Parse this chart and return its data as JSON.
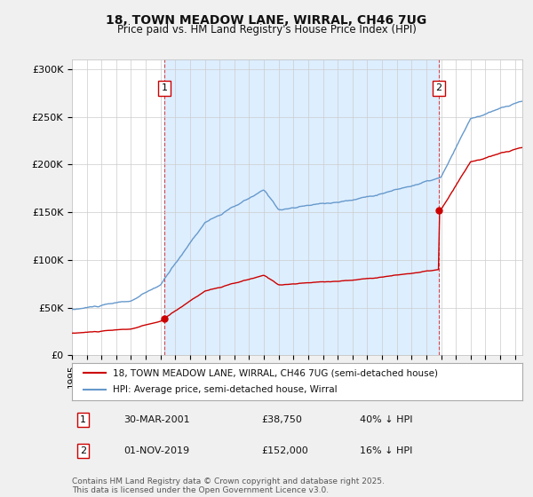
{
  "title": "18, TOWN MEADOW LANE, WIRRAL, CH46 7UG",
  "subtitle": "Price paid vs. HM Land Registry's House Price Index (HPI)",
  "ylabel_ticks": [
    "£0",
    "£50K",
    "£100K",
    "£150K",
    "£200K",
    "£250K",
    "£300K"
  ],
  "ytick_vals": [
    0,
    50000,
    100000,
    150000,
    200000,
    250000,
    300000
  ],
  "ylim": [
    0,
    310000
  ],
  "xlim_start": 1995.0,
  "xlim_end": 2025.5,
  "sale1_x": 2001.25,
  "sale1_y": 38750,
  "sale2_x": 2019.83,
  "sale2_y": 152000,
  "sale1_label": "30-MAR-2001",
  "sale1_price": "£38,750",
  "sale1_hpi": "40% ↓ HPI",
  "sale2_label": "01-NOV-2019",
  "sale2_price": "£152,000",
  "sale2_hpi": "16% ↓ HPI",
  "line1_color": "#cc0000",
  "line2_color": "#6699cc",
  "vline_color": "#cc0000",
  "shade_color": "#ddeeff",
  "bg_color": "#f0f0f0",
  "plot_bg": "#ffffff",
  "legend_line1": "18, TOWN MEADOW LANE, WIRRAL, CH46 7UG (semi-detached house)",
  "legend_line2": "HPI: Average price, semi-detached house, Wirral",
  "footer": "Contains HM Land Registry data © Crown copyright and database right 2025.\nThis data is licensed under the Open Government Licence v3.0.",
  "annotation_box_color": "#cc0000",
  "year_ticks": [
    1995,
    1996,
    1997,
    1998,
    1999,
    2000,
    2001,
    2002,
    2003,
    2004,
    2005,
    2006,
    2007,
    2008,
    2009,
    2010,
    2011,
    2012,
    2013,
    2014,
    2015,
    2016,
    2017,
    2018,
    2019,
    2020,
    2021,
    2022,
    2023,
    2024,
    2025
  ]
}
